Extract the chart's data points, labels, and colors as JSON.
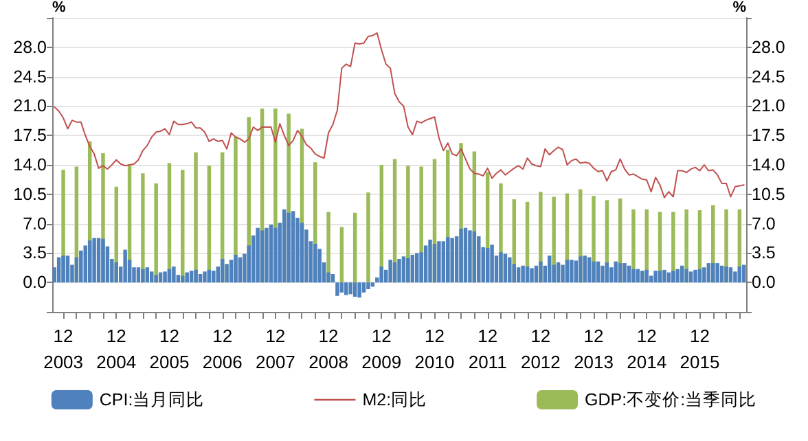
{
  "chart_data": {
    "type": "bar",
    "ylabel": "%",
    "y2label": "%",
    "grid": "y",
    "legend": "bottom",
    "marker": "none",
    "categories": [
      null,
      null,
      "12\n2003",
      null,
      null,
      null,
      null,
      null,
      null,
      null,
      null,
      null,
      null,
      null,
      "12\n2004",
      null,
      null,
      null,
      null,
      null,
      null,
      null,
      null,
      null,
      null,
      null,
      "12\n2005",
      null,
      null,
      null,
      null,
      null,
      null,
      null,
      null,
      null,
      null,
      null,
      "12\n2006",
      null,
      null,
      null,
      null,
      null,
      null,
      null,
      null,
      null,
      null,
      null,
      "12\n2007",
      null,
      null,
      null,
      null,
      null,
      null,
      null,
      null,
      null,
      null,
      null,
      "12\n2008",
      null,
      null,
      null,
      null,
      null,
      null,
      null,
      null,
      null,
      null,
      null,
      "12\n2009",
      null,
      null,
      null,
      null,
      null,
      null,
      null,
      null,
      null,
      null,
      null,
      "12\n2010",
      null,
      null,
      null,
      null,
      null,
      null,
      null,
      null,
      null,
      null,
      null,
      "12\n2011",
      null,
      null,
      null,
      null,
      null,
      null,
      null,
      null,
      null,
      null,
      null,
      "12\n2012",
      null,
      null,
      null,
      null,
      null,
      null,
      null,
      null,
      null,
      null,
      null,
      "12\n2013",
      null,
      null,
      null,
      null,
      null,
      null,
      null,
      null,
      null,
      null,
      null,
      "12\n2014",
      null,
      null,
      null,
      null,
      null,
      null,
      null,
      null,
      null,
      null,
      null,
      "12\n2015",
      null,
      null,
      null,
      null,
      null,
      null,
      null,
      null,
      null,
      null
    ],
    "ylim": [
      -3.5,
      31.5
    ],
    "yticks": [
      {
        "value": -3.5,
        "label": null
      },
      {
        "value": 0,
        "label": "0.0"
      },
      {
        "value": 3.5,
        "label": "3.5"
      },
      {
        "value": 7,
        "label": "7.0"
      },
      {
        "value": 10.5,
        "label": "10.5"
      },
      {
        "value": 14,
        "label": "14.0"
      },
      {
        "value": 17.5,
        "label": "17.5"
      },
      {
        "value": 21,
        "label": "21.0"
      },
      {
        "value": 24.5,
        "label": "24.5"
      },
      {
        "value": 28,
        "label": "28.0"
      },
      {
        "value": 31.5,
        "label": null
      }
    ],
    "y2lim": [
      -3.5,
      31.5
    ],
    "y2ticks": [
      {
        "value": -3.5,
        "label": null
      },
      {
        "value": 0,
        "label": "0.0"
      },
      {
        "value": 3.5,
        "label": "3.5"
      },
      {
        "value": 7,
        "label": "7.0"
      },
      {
        "value": 10.5,
        "label": "10.5"
      },
      {
        "value": 14,
        "label": "14.0"
      },
      {
        "value": 17.5,
        "label": "17.5"
      },
      {
        "value": 21,
        "label": "21.0"
      },
      {
        "value": 24.5,
        "label": "24.5"
      },
      {
        "value": 28,
        "label": "28.0"
      },
      {
        "value": 31.5,
        "label": null
      }
    ],
    "series": [
      {
        "name": "CPI:当月同比",
        "type": "bar",
        "color": "#4f81bd",
        "values": [
          1.8,
          3.0,
          3.2,
          3.2,
          2.1,
          3.0,
          3.8,
          4.4,
          5.0,
          5.3,
          5.3,
          5.2,
          4.3,
          2.8,
          2.4,
          1.9,
          3.9,
          2.7,
          1.8,
          1.8,
          1.6,
          1.8,
          1.3,
          0.9,
          1.2,
          1.3,
          1.6,
          1.9,
          0.9,
          0.8,
          1.2,
          1.4,
          1.5,
          1.0,
          1.3,
          1.5,
          1.4,
          1.9,
          2.8,
          2.2,
          2.7,
          3.3,
          3.0,
          3.4,
          4.4,
          5.6,
          6.5,
          6.2,
          6.5,
          6.9,
          6.5,
          7.1,
          8.7,
          8.3,
          8.5,
          7.7,
          7.1,
          6.3,
          4.9,
          4.6,
          4.0,
          2.4,
          1.2,
          1.0,
          -1.6,
          -1.2,
          -1.5,
          -1.4,
          -1.7,
          -1.8,
          -1.2,
          -0.8,
          -0.5,
          0.6,
          1.9,
          1.5,
          2.7,
          2.4,
          2.8,
          3.1,
          2.9,
          3.3,
          3.5,
          3.6,
          4.4,
          5.1,
          4.6,
          4.9,
          4.9,
          5.4,
          5.3,
          5.5,
          6.4,
          6.5,
          6.2,
          6.1,
          5.5,
          4.2,
          4.1,
          4.5,
          3.2,
          3.6,
          3.4,
          3.0,
          2.2,
          1.8,
          2.0,
          1.9,
          1.7,
          2.0,
          2.5,
          2.0,
          3.2,
          2.1,
          2.4,
          2.1,
          2.7,
          2.7,
          2.6,
          3.1,
          3.2,
          3.0,
          2.5,
          2.5,
          2.0,
          2.4,
          1.8,
          2.5,
          2.3,
          2.3,
          2.0,
          1.6,
          1.6,
          1.4,
          1.5,
          0.8,
          1.4,
          1.4,
          1.5,
          1.2,
          1.4,
          1.6,
          2.0,
          1.6,
          1.3,
          1.5,
          1.6,
          1.8,
          2.3,
          2.3,
          2.3,
          2.0,
          1.9,
          1.8,
          1.3,
          1.9,
          2.1
        ]
      },
      {
        "name": "M2:同比",
        "type": "line",
        "color": "#c0504d",
        "values": [
          20.9,
          20.4,
          19.6,
          18.3,
          19.3,
          19.1,
          19.1,
          17.5,
          16.2,
          15.3,
          13.6,
          13.9,
          13.5,
          14.0,
          14.6,
          14.1,
          13.9,
          14.0,
          14.1,
          14.6,
          15.7,
          16.3,
          17.3,
          17.9,
          18.0,
          18.3,
          17.6,
          19.2,
          18.8,
          18.8,
          18.9,
          19.1,
          18.4,
          18.4,
          17.9,
          16.8,
          17.1,
          16.8,
          16.9,
          15.9,
          17.8,
          17.3,
          17.1,
          16.7,
          17.1,
          18.5,
          18.1,
          18.5,
          18.5,
          18.5,
          16.7,
          18.9,
          17.5,
          16.3,
          16.9,
          18.1,
          17.4,
          16.4,
          16.0,
          15.3,
          15.0,
          14.8,
          17.8,
          18.8,
          20.5,
          25.5,
          26.0,
          25.7,
          28.5,
          28.4,
          28.5,
          29.3,
          29.4,
          29.7,
          27.7,
          26.0,
          25.5,
          22.5,
          21.5,
          21.0,
          18.5,
          17.6,
          19.2,
          19.0,
          19.3,
          19.5,
          19.7,
          17.2,
          15.7,
          16.6,
          15.3,
          15.1,
          15.9,
          14.7,
          13.5,
          13.0,
          12.9,
          12.7,
          13.6,
          12.4,
          13.0,
          13.4,
          12.8,
          13.2,
          13.6,
          13.9,
          13.5,
          14.8,
          14.1,
          13.9,
          13.8,
          15.9,
          15.2,
          15.7,
          16.1,
          15.8,
          14.0,
          14.5,
          14.7,
          14.2,
          14.3,
          14.2,
          13.6,
          13.2,
          13.3,
          12.1,
          13.2,
          13.4,
          14.7,
          13.5,
          12.8,
          12.9,
          12.6,
          12.3,
          12.2,
          10.8,
          12.5,
          11.6,
          10.1,
          10.8,
          10.2,
          13.3,
          13.3,
          13.1,
          13.5,
          13.7,
          13.3,
          14.0,
          13.3,
          13.4,
          12.8,
          11.8,
          11.8,
          10.2,
          11.4,
          11.5,
          11.6
        ]
      },
      {
        "name": "GDP:不变价:当季同比",
        "type": "bar",
        "color": "#9bbb59",
        "values": [
          null,
          null,
          13.4,
          null,
          null,
          13.8,
          null,
          null,
          16.8,
          null,
          null,
          15.4,
          null,
          null,
          11.4,
          null,
          null,
          14.0,
          null,
          null,
          13.0,
          null,
          null,
          11.8,
          null,
          null,
          14.2,
          null,
          null,
          13.4,
          null,
          null,
          15.5,
          null,
          null,
          13.9,
          null,
          null,
          15.5,
          null,
          null,
          17.4,
          null,
          null,
          19.7,
          null,
          null,
          20.7,
          null,
          null,
          20.7,
          null,
          null,
          20.1,
          null,
          null,
          18.3,
          null,
          null,
          14.3,
          null,
          null,
          8.4,
          null,
          null,
          6.6,
          null,
          null,
          8.3,
          null,
          null,
          10.7,
          null,
          null,
          14.0,
          null,
          null,
          14.7,
          null,
          null,
          13.9,
          null,
          null,
          13.8,
          null,
          null,
          14.7,
          null,
          null,
          15.8,
          null,
          null,
          16.6,
          null,
          null,
          15.6,
          null,
          null,
          13.1,
          null,
          null,
          11.8,
          null,
          null,
          9.9,
          null,
          null,
          9.6,
          null,
          null,
          10.8,
          null,
          null,
          10.2,
          null,
          null,
          10.6,
          null,
          null,
          11.1,
          null,
          null,
          10.3,
          null,
          null,
          9.8,
          null,
          null,
          10.0,
          null,
          null,
          8.7,
          null,
          null,
          8.7,
          null,
          null,
          8.4,
          null,
          null,
          8.4,
          null,
          null,
          8.7,
          null,
          null,
          8.6,
          null,
          null,
          9.2,
          null,
          null,
          8.7,
          null,
          null,
          8.7,
          null
        ]
      }
    ]
  }
}
